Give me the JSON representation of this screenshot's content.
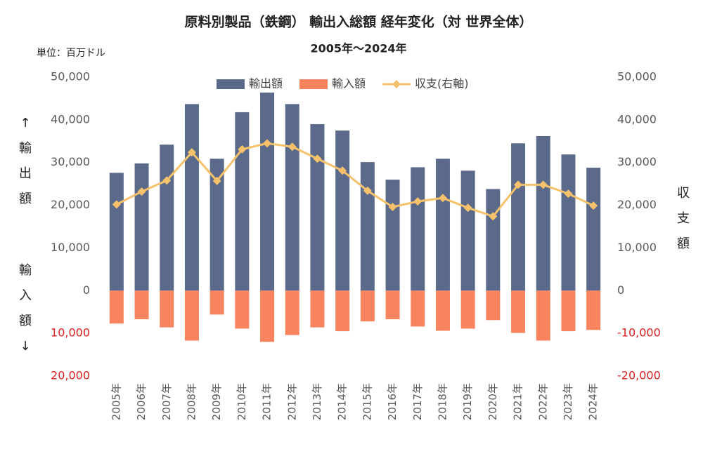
{
  "chart_data": {
    "type": "bar",
    "title": "原料別製品（鉄鋼） 輸出入総額 経年変化（対 世界全体）",
    "subtitle": "2005年～2024年",
    "unit_label": "単位：百万ドル",
    "y_label_top": "↑輸出額",
    "y_label_bottom": "輸入額↓",
    "y2_label": "収支額",
    "categories": [
      "2005年",
      "2006年",
      "2007年",
      "2008年",
      "2009年",
      "2010年",
      "2011年",
      "2012年",
      "2013年",
      "2014年",
      "2015年",
      "2016年",
      "2017年",
      "2018年",
      "2019年",
      "2020年",
      "2021年",
      "2022年",
      "2023年",
      "2024年"
    ],
    "series": [
      {
        "name": "輸出額",
        "type": "bar",
        "color": "#5b6a8a",
        "values": [
          27600,
          29800,
          34200,
          43700,
          30900,
          41800,
          46400,
          43700,
          39000,
          37500,
          30100,
          26000,
          28900,
          30900,
          28100,
          23800,
          34500,
          36200,
          31900,
          28800
        ]
      },
      {
        "name": "輸入額",
        "type": "bar",
        "color": "#f7845e",
        "values": [
          -7700,
          -6700,
          -8600,
          -11700,
          -5600,
          -8900,
          -12000,
          -10400,
          -8600,
          -9500,
          -7200,
          -6700,
          -8400,
          -9400,
          -8900,
          -6900,
          -9900,
          -11700,
          -9500,
          -9200
        ]
      },
      {
        "name": "収支(右軸)",
        "type": "line",
        "axis": "y2",
        "color": "#f5c26b",
        "values": [
          20200,
          23200,
          25800,
          32400,
          25700,
          33100,
          34500,
          33700,
          30900,
          28100,
          23400,
          19600,
          20900,
          21700,
          19400,
          17400,
          24800,
          24800,
          22700,
          19900
        ]
      }
    ],
    "ylim": [
      -20000,
      50000
    ],
    "yticks": [
      {
        "value": 50000,
        "label": "50,000"
      },
      {
        "value": 40000,
        "label": "40,000"
      },
      {
        "value": 30000,
        "label": "30,000"
      },
      {
        "value": 20000,
        "label": "20,000"
      },
      {
        "value": 10000,
        "label": "10,000"
      },
      0,
      {
        "value": -10000,
        "label": "10,000"
      },
      {
        "value": -20000,
        "label": "20,000"
      }
    ],
    "y2lim": [
      -20000,
      50000
    ],
    "y2ticks": [
      {
        "value": 50000,
        "label": "50,000"
      },
      {
        "value": 40000,
        "label": "40,000"
      },
      {
        "value": 30000,
        "label": "30,000"
      },
      {
        "value": 20000,
        "label": "20,000"
      },
      {
        "value": 10000,
        "label": "10,000"
      },
      0,
      {
        "value": -10000,
        "label": "-10,000"
      },
      {
        "value": -20000,
        "label": "-20,000"
      }
    ],
    "negative_tick_color": "#e02020",
    "legend": "top"
  }
}
